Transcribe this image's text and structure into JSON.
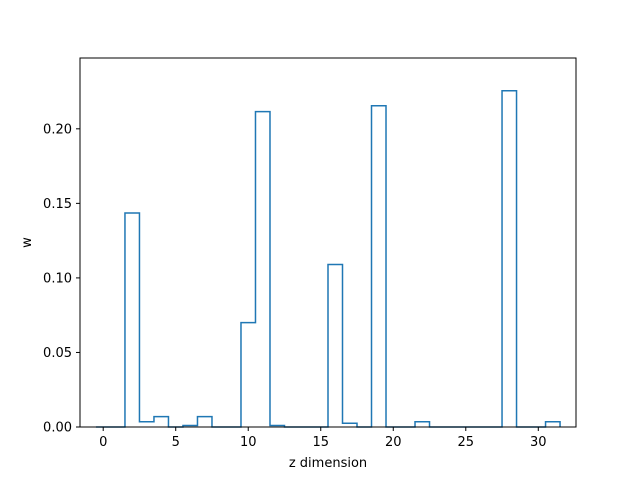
{
  "chart_data": {
    "type": "step-histogram",
    "xlabel": "z dimension",
    "ylabel": "w",
    "xlim": [
      -1.6,
      32.6
    ],
    "ylim": [
      0,
      0.2475
    ],
    "x_ticks": [
      0,
      5,
      10,
      15,
      20,
      25,
      30
    ],
    "y_ticks": [
      0.0,
      0.05,
      0.1,
      0.15,
      0.2
    ],
    "y_tick_labels": [
      "0.00",
      "0.05",
      "0.10",
      "0.15",
      "0.20"
    ],
    "bins": [
      0,
      1,
      2,
      3,
      4,
      5,
      6,
      7,
      8,
      9,
      10,
      11,
      12,
      13,
      14,
      15,
      16,
      17,
      18,
      19,
      20,
      21,
      22,
      23,
      24,
      25,
      26,
      27,
      28,
      29,
      30,
      31
    ],
    "values": [
      0.0,
      0.0,
      0.1435,
      0.0035,
      0.007,
      0.0,
      0.001,
      0.007,
      0.0,
      0.0,
      0.07,
      0.2115,
      0.001,
      0.0,
      0.0,
      0.0,
      0.109,
      0.0025,
      0.0,
      0.2155,
      0.0,
      0.0,
      0.0035,
      0.0,
      0.0,
      0.0,
      0.0,
      0.0,
      0.2255,
      0.0,
      0.0,
      0.0035
    ],
    "line_color": "#1f77b4",
    "grid": false,
    "legend": "none"
  }
}
